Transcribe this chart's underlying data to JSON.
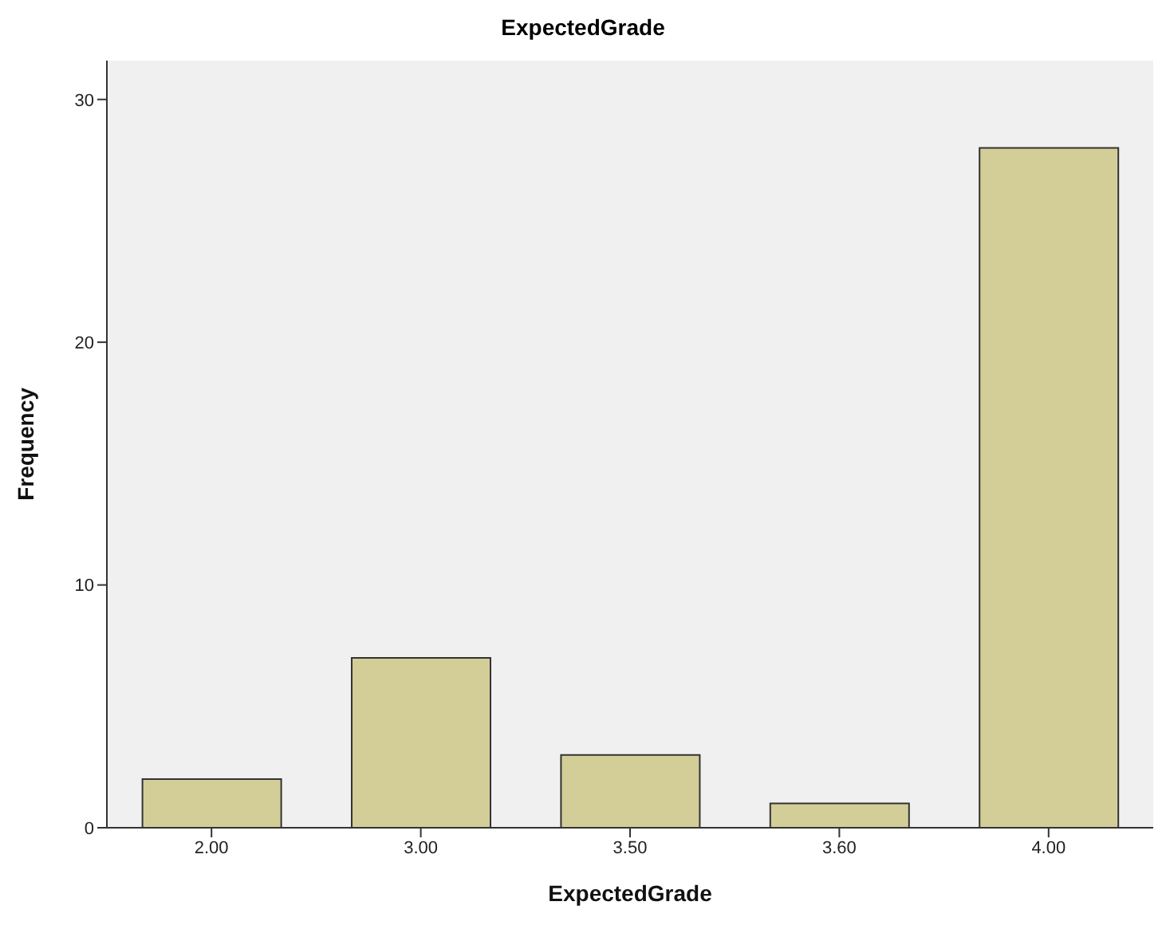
{
  "chart_data": {
    "type": "bar",
    "title": "ExpectedGrade",
    "xlabel": "ExpectedGrade",
    "ylabel": "Frequency",
    "categories": [
      "2.00",
      "3.00",
      "3.50",
      "3.60",
      "4.00"
    ],
    "values": [
      2,
      7,
      3,
      1,
      28
    ],
    "color": "#d3ce98",
    "ylim": [
      0,
      31.6
    ],
    "yticks": [
      0,
      10,
      20,
      30
    ]
  }
}
